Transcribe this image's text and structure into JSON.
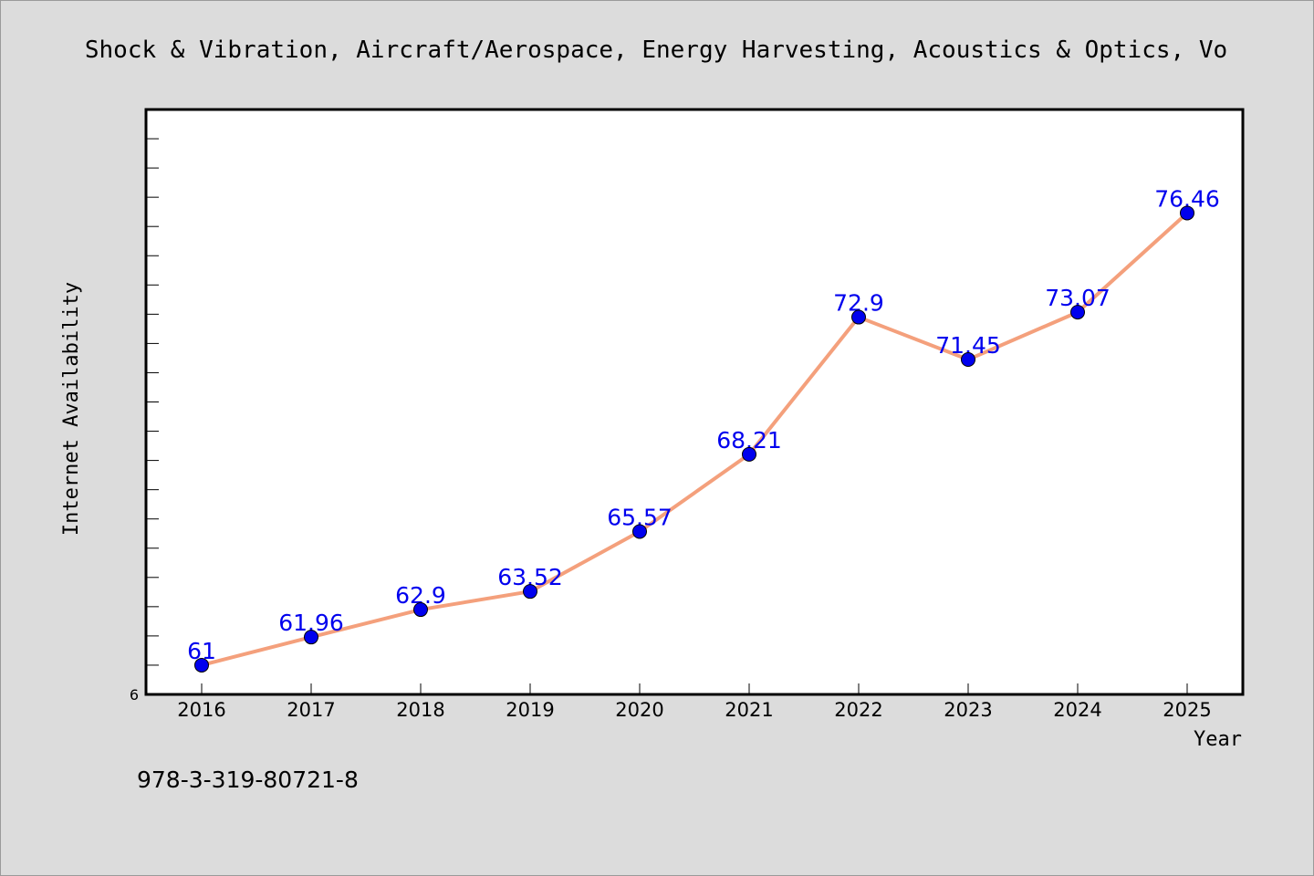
{
  "chart_data": {
    "type": "line",
    "title": "Shock & Vibration, Aircraft/Aerospace, Energy Harvesting, Acoustics & Optics, Vo",
    "xlabel": "Year",
    "ylabel": "Internet Availability",
    "x": [
      "2016",
      "2017",
      "2018",
      "2019",
      "2020",
      "2021",
      "2022",
      "2023",
      "2024",
      "2025"
    ],
    "series": [
      {
        "values": [
          61,
          61.96,
          62.9,
          63.52,
          65.57,
          68.21,
          72.9,
          71.45,
          73.07,
          76.46
        ],
        "labels": [
          "61",
          "61.96",
          "62.9",
          "63.52",
          "65.57",
          "68.21",
          "72.9",
          "71.45",
          "73.07",
          "76.46"
        ],
        "line_color": "#f4a07c",
        "marker_color": "#0000ee"
      }
    ],
    "ylim": [
      60,
      80
    ],
    "y_axis_visible_label": "6",
    "grid": false,
    "legend": "none"
  },
  "footnote": "978-3-319-80721-8",
  "colors": {
    "background": "#dcdcdc",
    "plot_background": "#ffffff",
    "line": "#f4a07c",
    "marker": "#0000ee",
    "data_label": "#0000ee"
  }
}
